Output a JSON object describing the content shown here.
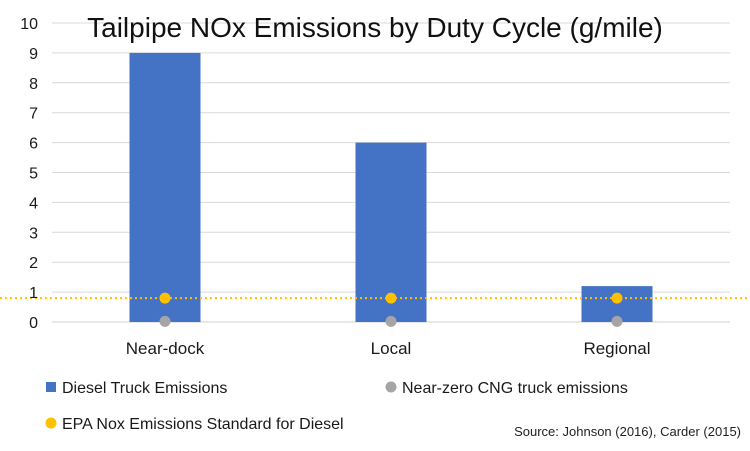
{
  "chart_data": {
    "type": "bar",
    "title": "Tailpipe NOx Emissions by Duty Cycle (g/mile)",
    "categories": [
      "Near-dock",
      "Local",
      "Regional"
    ],
    "ylim": [
      0,
      10
    ],
    "yticks": [
      0,
      1,
      2,
      3,
      4,
      5,
      6,
      7,
      8,
      9,
      10
    ],
    "grid": true,
    "series": [
      {
        "name": "Diesel Truck Emissions",
        "kind": "bar",
        "color": "#4472C4",
        "values": [
          9,
          6,
          1.2
        ]
      },
      {
        "name": "Near-zero CNG truck emissions",
        "kind": "marker",
        "color": "#A5A5A5",
        "values": [
          0.02,
          0.02,
          0.02
        ]
      },
      {
        "name": "EPA Nox Emissions Standard for Diesel",
        "kind": "marker",
        "color": "#FFC000",
        "values": [
          0.8,
          0.8,
          0.8
        ]
      }
    ],
    "reference_line": {
      "value": 0.8,
      "color": "#FFC000",
      "style": "dotted"
    },
    "legend_position": "bottom",
    "source": "Source: Johnson (2016), Carder (2015)"
  }
}
